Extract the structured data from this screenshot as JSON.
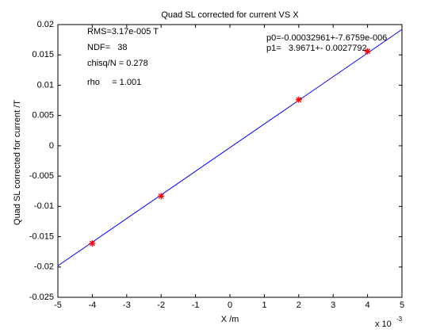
{
  "chart_data": {
    "type": "scatter",
    "title": "Quad SL corrected for current VS X",
    "xlabel": "X /m",
    "ylabel": "Quad SL corrected for current /T",
    "x_multiplier": {
      "base": "x 10",
      "exponent": "-3"
    },
    "annotations": [
      "RMS=3.17e-005 T",
      "NDF=   38",
      "chisq/N = 0.278",
      "rho     = 1.001",
      "p0=-0.00032961+-7.6759e-006",
      "p1=   3.9671+- 0.0027792"
    ],
    "points": {
      "x": [
        -4,
        -2,
        2,
        4
      ],
      "values": [
        -0.0161,
        -0.0083,
        0.0076,
        0.0156
      ],
      "color": "#ff0000"
    },
    "fit": {
      "x": [
        -5,
        5
      ],
      "values": [
        -0.0198,
        0.0192
      ],
      "color": "#0000ff"
    },
    "xlim": [
      -5,
      5
    ],
    "xticks": [
      -5,
      -4,
      -3,
      -2,
      -1,
      0,
      1,
      2,
      3,
      4,
      5
    ],
    "ylim": [
      -0.025,
      0.02
    ],
    "yticks": [
      -0.025,
      -0.02,
      -0.015,
      -0.01,
      -0.005,
      0,
      0.005,
      0.01,
      0.015,
      0.02
    ]
  }
}
